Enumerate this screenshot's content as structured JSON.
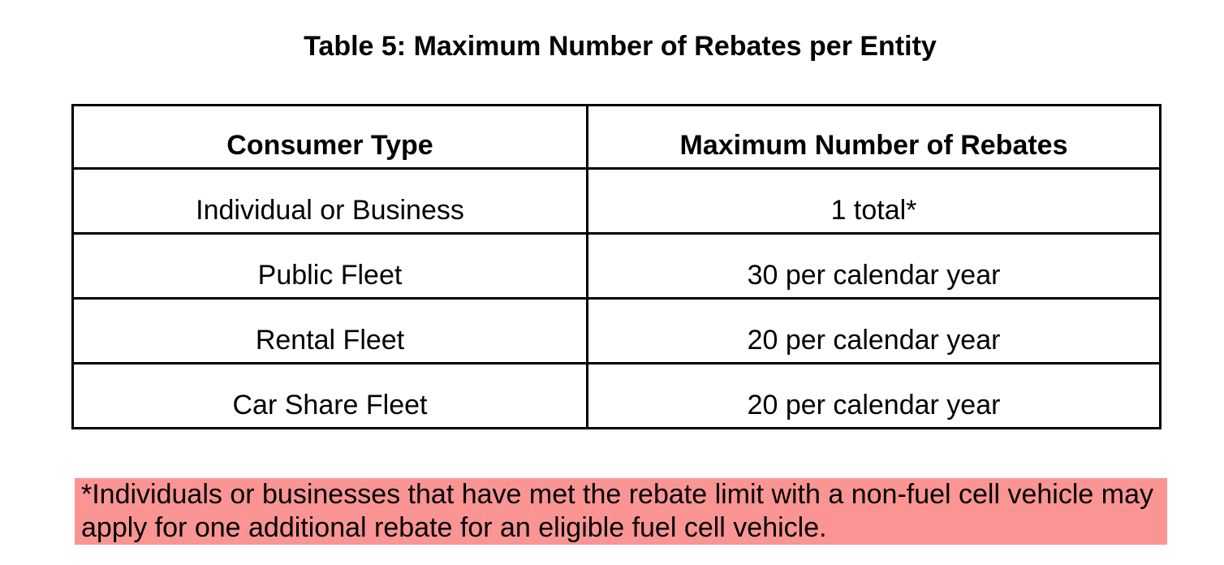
{
  "title": "Table 5: Maximum Number of Rebates per Entity",
  "table": {
    "columns": {
      "consumer_type": "Consumer Type",
      "max_rebates": "Maximum Number of Rebates"
    },
    "rows": [
      {
        "consumer_type": "Individual or Business",
        "max_rebates": "1 total*"
      },
      {
        "consumer_type": "Public Fleet",
        "max_rebates": "30 per calendar year"
      },
      {
        "consumer_type": "Rental Fleet",
        "max_rebates": "20 per calendar year"
      },
      {
        "consumer_type": "Car Share Fleet",
        "max_rebates": "20 per calendar year"
      }
    ]
  },
  "footnote": {
    "text": "*Individuals or businesses that have met the rebate limit with a non-fuel cell vehicle may apply for one additional rebate for an eligible fuel cell vehicle.",
    "highlight_color": "#FA9593"
  },
  "colors": {
    "text": "#000000",
    "background": "#FFFFFF",
    "table_border": "#000000"
  }
}
